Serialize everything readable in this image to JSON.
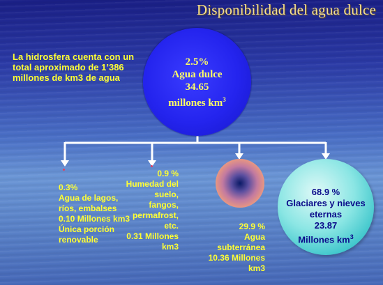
{
  "title": "Disponibilidad del agua dulce",
  "intro": "La hidrosfera cuenta con un total aproximado de 1’386 millones de km3 de agua",
  "center": {
    "pct": "2.5%",
    "label": "Agua dulce",
    "amount": "34.65",
    "unit": "millones km",
    "unit_sup": "3"
  },
  "branches": {
    "lakes": {
      "pct": "0.3%",
      "text": "Agua de lagos, ríos, embalses",
      "amount": "0.10 Millones km3",
      "note": "Única porción renovable"
    },
    "soil": {
      "pct": "0.9 %",
      "text": "Humedad del suelo, fangos, permafrost, etc.",
      "amount": "0.31 Millones km3"
    },
    "ground": {
      "pct": "29.9 %",
      "text": "Agua subterránea",
      "amount": "10.36 Millones km3"
    },
    "glaciers": {
      "pct": "68.9 %",
      "text": "Glaciares y nieves eternas",
      "amount": "23.87",
      "unit": "Millones km",
      "unit_sup": "3"
    }
  },
  "colors": {
    "title": "#f4df92",
    "leaf_text": "#ffff33",
    "center_circle": "#2424ee",
    "glacier_circle": "#5fd7d8",
    "connector": "#ffffff"
  }
}
